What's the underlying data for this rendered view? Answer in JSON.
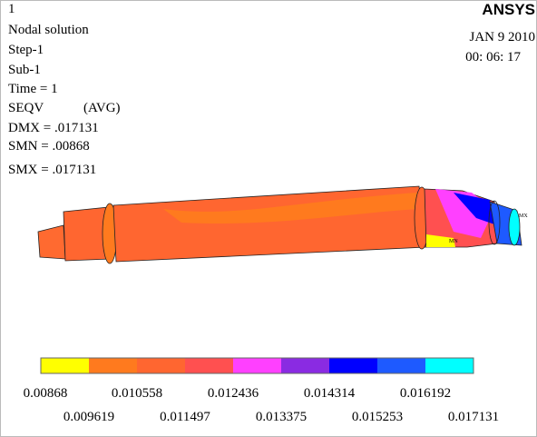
{
  "header": {
    "window_number": "1",
    "lines": [
      "Nodal solution",
      "Step-1",
      "Sub-1",
      "Time = 1"
    ],
    "result": "SEQV",
    "result_mode": "(AVG)",
    "stats": [
      "DMX = .017131",
      "SMN = .00868",
      "SMX = .017131"
    ],
    "logo": "ANSYS",
    "date": "JAN  9 2010",
    "time": "00: 06: 17"
  },
  "model": {
    "max_label": "MX",
    "min_label": "MN"
  },
  "legend": {
    "colors": [
      "#ffff00",
      "#ff7a1e",
      "#ff6630",
      "#ff5050",
      "#ff40ff",
      "#8a2be2",
      "#0000ff",
      "#1e5aff",
      "#00ffff"
    ],
    "labels": [
      "0.00868",
      "0.009619",
      "0.010558",
      "0.011497",
      "0.012436",
      "0.013375",
      "0.014314",
      "0.015253",
      "0.016192",
      "0.017131"
    ]
  }
}
